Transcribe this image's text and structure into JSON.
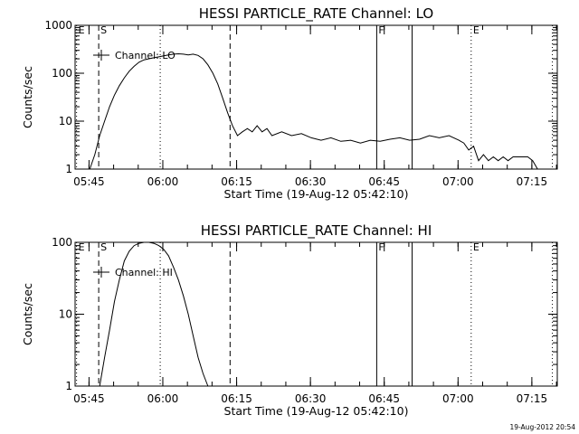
{
  "timestamp": "19-Aug-2012 20:54",
  "chart_data": [
    {
      "type": "line",
      "title": "HESSI PARTICLE_RATE Channel: LO",
      "xlabel": "Start Time (19-Aug-12 05:42:10)",
      "ylabel": "Counts/sec",
      "y_scale": "log",
      "ylim": [
        1,
        1000
      ],
      "y_ticks": [
        {
          "value": 1,
          "label": "1"
        },
        {
          "value": 10,
          "label": "10"
        },
        {
          "value": 100,
          "label": "100"
        },
        {
          "value": 1000,
          "label": "1000"
        }
      ],
      "x_unit": "minutes after 05:42:10",
      "xlim": [
        0,
        98
      ],
      "x_ticks": [
        {
          "value": 2.83,
          "label": "05:45"
        },
        {
          "value": 17.83,
          "label": "06:00"
        },
        {
          "value": 32.83,
          "label": "06:15"
        },
        {
          "value": 47.83,
          "label": "06:30"
        },
        {
          "value": 62.83,
          "label": "06:45"
        },
        {
          "value": 77.83,
          "label": "07:00"
        },
        {
          "value": 92.83,
          "label": "07:15"
        }
      ],
      "legend": {
        "position": "top-left",
        "label": "Channel: LO"
      },
      "series": [
        {
          "name": "Channel: LO",
          "x": [
            3,
            4,
            5,
            6,
            7,
            8,
            9,
            10,
            11,
            12,
            13,
            14,
            15,
            16,
            17,
            18,
            19,
            20,
            21,
            22,
            23,
            24,
            25,
            26,
            27,
            28,
            29,
            30,
            31,
            32,
            33,
            34,
            35,
            36,
            37,
            38,
            39,
            40,
            42,
            44,
            46,
            48,
            50,
            52,
            54,
            56,
            58,
            60,
            62,
            64,
            66,
            68,
            70,
            72,
            74,
            76,
            78,
            79,
            80,
            81,
            82,
            83,
            84,
            85,
            86,
            87,
            88,
            89,
            90,
            91,
            92,
            93,
            94
          ],
          "values": [
            1,
            2,
            5,
            10,
            20,
            35,
            55,
            80,
            110,
            140,
            170,
            190,
            200,
            210,
            220,
            230,
            240,
            250,
            255,
            250,
            240,
            250,
            235,
            200,
            150,
            100,
            60,
            30,
            15,
            8,
            5,
            6,
            7,
            6,
            8,
            6,
            7,
            5,
            6,
            5,
            5.5,
            4.5,
            4,
            4.5,
            3.8,
            4,
            3.5,
            4,
            3.8,
            4.2,
            4.5,
            4,
            4.2,
            5,
            4.5,
            5,
            4,
            3.5,
            2.5,
            3,
            1.5,
            2,
            1.5,
            1.8,
            1.5,
            1.8,
            1.5,
            1.8,
            1.8,
            1.8,
            1.8,
            1.5,
            1
          ]
        }
      ],
      "markers": [
        {
          "x": 0.3,
          "label": "E",
          "style": "dotted"
        },
        {
          "x": 4.8,
          "label": "S",
          "style": "dashed"
        },
        {
          "x": 17.3,
          "label": "",
          "style": "dotted"
        },
        {
          "x": 31.5,
          "label": "",
          "style": "dashed"
        },
        {
          "x": 61.3,
          "label": "F",
          "style": "solid"
        },
        {
          "x": 68.5,
          "label": "",
          "style": "solid"
        },
        {
          "x": 80.5,
          "label": "E",
          "style": "dotted"
        },
        {
          "x": 97.0,
          "label": "",
          "style": "dotted"
        }
      ]
    },
    {
      "type": "line",
      "title": "HESSI PARTICLE_RATE Channel: HI",
      "xlabel": "Start Time (19-Aug-12 05:42:10)",
      "ylabel": "Counts/sec",
      "y_scale": "log",
      "ylim": [
        1,
        100
      ],
      "y_ticks": [
        {
          "value": 1,
          "label": "1"
        },
        {
          "value": 10,
          "label": "10"
        },
        {
          "value": 100,
          "label": "100"
        }
      ],
      "x_unit": "minutes after 05:42:10",
      "xlim": [
        0,
        98
      ],
      "x_ticks": [
        {
          "value": 2.83,
          "label": "05:45"
        },
        {
          "value": 17.83,
          "label": "06:00"
        },
        {
          "value": 32.83,
          "label": "06:15"
        },
        {
          "value": 47.83,
          "label": "06:30"
        },
        {
          "value": 62.83,
          "label": "06:45"
        },
        {
          "value": 77.83,
          "label": "07:00"
        },
        {
          "value": 92.83,
          "label": "07:15"
        }
      ],
      "legend": {
        "position": "top-left",
        "label": "Channel: HI"
      },
      "series": [
        {
          "name": "Channel: HI",
          "x": [
            5,
            6,
            7,
            8,
            9,
            10,
            11,
            12,
            13,
            14,
            15,
            16,
            17,
            18,
            19,
            20,
            21,
            22,
            23,
            24,
            25,
            26,
            27
          ],
          "values": [
            1,
            2.5,
            6,
            15,
            30,
            55,
            75,
            90,
            97,
            100,
            100,
            97,
            90,
            80,
            65,
            45,
            30,
            18,
            10,
            5,
            2.5,
            1.5,
            1
          ]
        }
      ],
      "markers": [
        {
          "x": 0.3,
          "label": "E",
          "style": "dotted"
        },
        {
          "x": 4.8,
          "label": "S",
          "style": "dashed"
        },
        {
          "x": 17.3,
          "label": "",
          "style": "dotted"
        },
        {
          "x": 31.5,
          "label": "",
          "style": "dashed"
        },
        {
          "x": 61.3,
          "label": "F",
          "style": "solid"
        },
        {
          "x": 68.5,
          "label": "",
          "style": "solid"
        },
        {
          "x": 80.5,
          "label": "E",
          "style": "dotted"
        },
        {
          "x": 97.0,
          "label": "",
          "style": "dotted"
        }
      ]
    }
  ]
}
